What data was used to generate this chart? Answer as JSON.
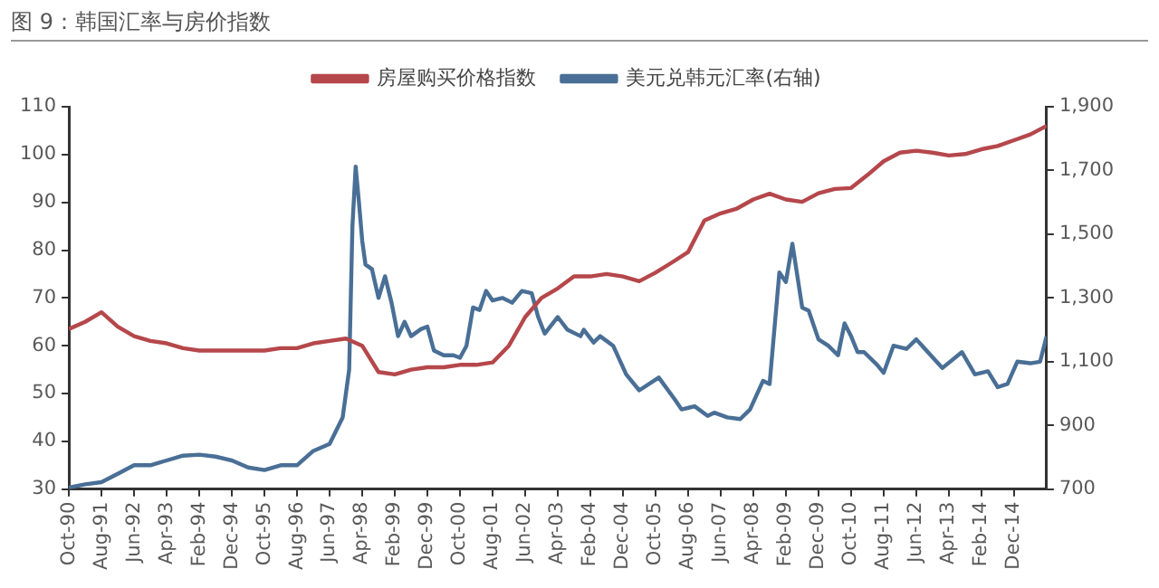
{
  "chart_data": {
    "type": "line",
    "title": "图 9：韩国汇率与房价指数",
    "legend": "top",
    "grid": false,
    "marker": "none",
    "line_style": "solid",
    "xlim": [
      "1990-10",
      "2015-10"
    ],
    "xticks": [
      {
        "value": "1990-10",
        "label": "Oct-90"
      },
      {
        "value": "1991-08",
        "label": "Aug-91"
      },
      {
        "value": "1992-06",
        "label": "Jun-92"
      },
      {
        "value": "1993-04",
        "label": "Apr-93"
      },
      {
        "value": "1994-02",
        "label": "Feb-94"
      },
      {
        "value": "1994-12",
        "label": "Dec-94"
      },
      {
        "value": "1995-10",
        "label": "Oct-95"
      },
      {
        "value": "1996-08",
        "label": "Aug-96"
      },
      {
        "value": "1997-06",
        "label": "Jun-97"
      },
      {
        "value": "1998-04",
        "label": "Apr-98"
      },
      {
        "value": "1999-02",
        "label": "Feb-99"
      },
      {
        "value": "1999-12",
        "label": "Dec-99"
      },
      {
        "value": "2000-10",
        "label": "Oct-00"
      },
      {
        "value": "2001-08",
        "label": "Aug-01"
      },
      {
        "value": "2002-06",
        "label": "Jun-02"
      },
      {
        "value": "2003-04",
        "label": "Apr-03"
      },
      {
        "value": "2004-02",
        "label": "Feb-04"
      },
      {
        "value": "2004-12",
        "label": "Dec-04"
      },
      {
        "value": "2005-10",
        "label": "Oct-05"
      },
      {
        "value": "2006-08",
        "label": "Aug-06"
      },
      {
        "value": "2007-06",
        "label": "Jun-07"
      },
      {
        "value": "2008-04",
        "label": "Apr-08"
      },
      {
        "value": "2009-02",
        "label": "Feb-09"
      },
      {
        "value": "2009-12",
        "label": "Dec-09"
      },
      {
        "value": "2010-10",
        "label": "Oct-10"
      },
      {
        "value": "2011-08",
        "label": "Aug-11"
      },
      {
        "value": "2012-06",
        "label": "Jun-12"
      },
      {
        "value": "2013-04",
        "label": "Apr-13"
      },
      {
        "value": "2014-02",
        "label": "Feb-14"
      },
      {
        "value": "2014-12",
        "label": "Dec-14"
      }
    ],
    "ylim": [
      30,
      110
    ],
    "yticks": [
      30,
      40,
      50,
      60,
      70,
      80,
      90,
      100,
      110
    ],
    "y2lim": [
      700,
      1900
    ],
    "y2ticks": [
      {
        "value": 700,
        "label": "700"
      },
      {
        "value": 900,
        "label": "900"
      },
      {
        "value": 1100,
        "label": "1,100"
      },
      {
        "value": 1300,
        "label": "1,300"
      },
      {
        "value": 1500,
        "label": "1,500"
      },
      {
        "value": 1700,
        "label": "1,700"
      },
      {
        "value": 1900,
        "label": "1,900"
      }
    ],
    "series": [
      {
        "name": "房屋购买价格指数",
        "color": "#b5474b",
        "x": [
          "1990-10",
          "1991-03",
          "1991-08",
          "1992-01",
          "1992-06",
          "1992-11",
          "1993-04",
          "1993-09",
          "1994-02",
          "1994-07",
          "1994-12",
          "1995-05",
          "1995-10",
          "1996-03",
          "1996-08",
          "1997-01",
          "1997-06",
          "1997-11",
          "1998-04",
          "1998-09",
          "1999-02",
          "1999-07",
          "1999-12",
          "2000-05",
          "2000-10",
          "2001-03",
          "2001-08",
          "2002-01",
          "2002-06",
          "2002-11",
          "2003-04",
          "2003-09",
          "2004-02",
          "2004-07",
          "2004-12",
          "2005-05",
          "2005-10",
          "2006-03",
          "2006-08",
          "2007-01",
          "2007-06",
          "2007-11",
          "2008-04",
          "2008-09",
          "2009-02",
          "2009-07",
          "2009-12",
          "2010-05",
          "2010-10",
          "2011-03",
          "2011-08",
          "2012-01",
          "2012-06",
          "2012-11",
          "2013-04",
          "2013-09",
          "2014-02",
          "2014-07",
          "2014-12",
          "2015-05",
          "2015-10"
        ],
        "values": [
          63.5,
          65,
          67,
          64,
          62,
          61,
          60.5,
          59.5,
          59,
          59,
          59,
          59,
          59,
          59.5,
          59.5,
          60.5,
          61,
          61.5,
          60,
          54.5,
          54,
          55,
          55.5,
          55.5,
          56,
          56,
          56.5,
          60,
          66,
          70,
          72,
          74.5,
          74.5,
          75,
          74.5,
          73.5,
          75.3,
          77.4,
          79.6,
          86.2,
          87.7,
          88.7,
          90.6,
          91.8,
          90.6,
          90.1,
          91.9,
          92.8,
          93,
          95.7,
          98.6,
          100.4,
          100.8,
          100.4,
          99.8,
          100.1,
          101.1,
          101.8,
          103,
          104.2,
          106
        ]
      },
      {
        "name": "美元兑韩元汇率(右轴)",
        "color": "#4a6f96",
        "axis": "y2",
        "x": [
          "1990-10",
          "1991-03",
          "1991-08",
          "1992-01",
          "1992-06",
          "1992-11",
          "1993-04",
          "1993-09",
          "1994-02",
          "1994-07",
          "1994-12",
          "1995-05",
          "1995-10",
          "1996-03",
          "1996-08",
          "1997-01",
          "1997-06",
          "1997-10",
          "1997-12",
          "1998-01",
          "1998-02",
          "1998-03",
          "1998-04",
          "1998-05",
          "1998-07",
          "1998-09",
          "1998-11",
          "1999-01",
          "1999-03",
          "1999-05",
          "1999-07",
          "1999-10",
          "1999-12",
          "2000-02",
          "2000-05",
          "2000-08",
          "2000-10",
          "2000-12",
          "2001-02",
          "2001-04",
          "2001-06",
          "2001-08",
          "2001-11",
          "2002-02",
          "2002-05",
          "2002-08",
          "2002-10",
          "2002-12",
          "2003-04",
          "2003-07",
          "2003-11",
          "2003-12",
          "2004-03",
          "2004-05",
          "2004-09",
          "2005-01",
          "2005-05",
          "2005-11",
          "2006-04",
          "2006-06",
          "2006-10",
          "2007-02",
          "2007-04",
          "2007-08",
          "2007-12",
          "2008-03",
          "2008-07",
          "2008-09",
          "2008-12",
          "2009-02",
          "2009-04",
          "2009-07",
          "2009-09",
          "2009-12",
          "2010-03",
          "2010-06",
          "2010-08",
          "2010-10",
          "2010-12",
          "2011-02",
          "2011-06",
          "2011-08",
          "2011-11",
          "2012-03",
          "2012-06",
          "2013-02",
          "2013-08",
          "2013-12",
          "2014-04",
          "2014-07",
          "2014-10",
          "2015-01",
          "2015-05",
          "2015-08",
          "2015-10"
        ],
        "values": [
          705,
          715,
          722,
          748,
          775,
          775,
          790,
          805,
          808,
          802,
          790,
          768,
          760,
          775,
          775,
          820,
          842,
          925,
          1075,
          1525,
          1712,
          1600,
          1480,
          1405,
          1390,
          1300,
          1368,
          1285,
          1180,
          1225,
          1180,
          1202,
          1210,
          1135,
          1120,
          1120,
          1112,
          1150,
          1270,
          1262,
          1322,
          1292,
          1300,
          1285,
          1322,
          1315,
          1240,
          1188,
          1240,
          1200,
          1180,
          1200,
          1160,
          1180,
          1150,
          1060,
          1010,
          1050,
          980,
          950,
          960,
          930,
          940,
          925,
          920,
          950,
          1040,
          1030,
          1380,
          1350,
          1470,
          1270,
          1260,
          1170,
          1150,
          1120,
          1220,
          1180,
          1130,
          1130,
          1090,
          1065,
          1150,
          1140,
          1170,
          1080,
          1130,
          1060,
          1070,
          1020,
          1030,
          1100,
          1095,
          1100,
          1180
        ]
      }
    ]
  }
}
